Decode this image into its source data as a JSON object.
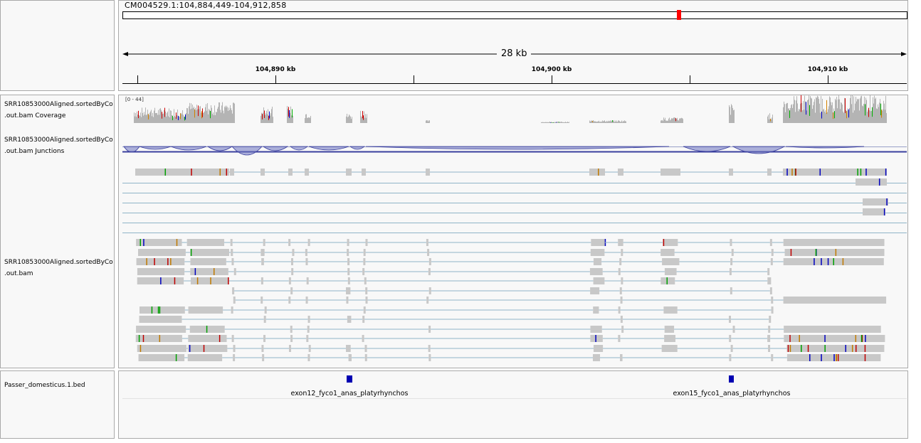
{
  "ruler": {
    "locus": "CM004529.1:104,884,449-104,912,858",
    "span": "28 kb",
    "ticks": [
      {
        "label": "104,890 kb",
        "pos": 104890000
      },
      {
        "label": "104,900 kb",
        "pos": 104900000
      },
      {
        "label": "104,910 kb",
        "pos": 104910000
      }
    ],
    "start": 104884449,
    "end": 104912858
  },
  "tracks": {
    "coverage": {
      "name_line1": "SRR10853000Aligned.sortedByCo",
      "name_line2": ".out.bam Coverage",
      "range": "[0 - 44]"
    },
    "junctions": {
      "name_line1": "SRR10853000Aligned.sortedByCo",
      "name_line2": ".out.bam Junctions"
    },
    "alignments": {
      "name_line1": "SRR10853000Aligned.sortedByCo",
      "name_line2": ".out.bam"
    },
    "bed": {
      "name": "Passer_domesticus.1.bed",
      "features": [
        {
          "label": "exon12_fyco1_anas_platyrhynchos"
        },
        {
          "label": "exon15_fyco1_anas_platyrhynchos"
        }
      ]
    }
  },
  "colors": {
    "read": "#c8c8c8",
    "intron": "#8fb4c8",
    "junction": "#3a3f9e",
    "feature": "#0000b2",
    "viewport": "#ff0000"
  }
}
